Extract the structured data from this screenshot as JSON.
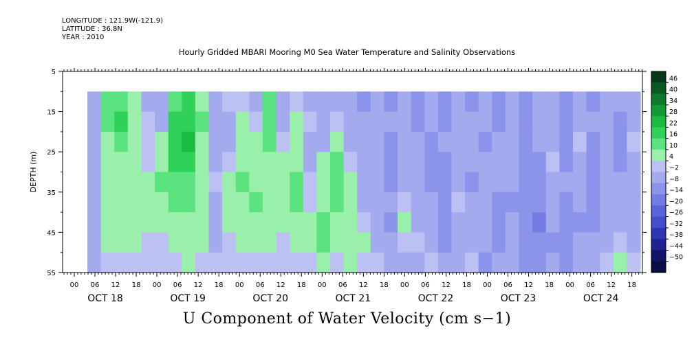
{
  "header": {
    "longitude": "LONGITUDE : 121.9W(-121.9)",
    "latitude": "LATITUDE : 36.8N",
    "year": "YEAR : 2010"
  },
  "chart_data": {
    "type": "heatmap",
    "title": "Hourly Gridded MBARI Mooring M0 Sea Water Temperature and Salinity Observations",
    "xlabel": "U Component of Water Velocity (cm s−1)",
    "ylabel": "DEPTH (m)",
    "y_range": [
      5,
      55
    ],
    "y_ticks": [
      5,
      15,
      25,
      35,
      45,
      55
    ],
    "y_data_range": [
      10,
      55
    ],
    "x_hour_ticks": [
      "00",
      "06",
      "12",
      "18",
      "00",
      "06",
      "12",
      "18",
      "00",
      "06",
      "12",
      "18",
      "00",
      "06",
      "12",
      "18",
      "00",
      "06",
      "12",
      "18",
      "00",
      "06",
      "12",
      "18",
      "00",
      "06",
      "12",
      "18"
    ],
    "x_day_labels": [
      "OCT 18",
      "OCT 19",
      "OCT 20",
      "OCT 21",
      "OCT 22",
      "OCT 23",
      "OCT 24"
    ],
    "colorbar": {
      "labels": [
        "46",
        "40",
        "34",
        "28",
        "22",
        "16",
        "10",
        "4",
        "−2",
        "−8",
        "−14",
        "−20",
        "−26",
        "−32",
        "−38",
        "−44",
        "−50"
      ],
      "colors": [
        "#063a1a",
        "#0a5a22",
        "#0f7a2b",
        "#149a35",
        "#1bbb42",
        "#2fd158",
        "#5ae37e",
        "#9af0ab",
        "#bcc0f2",
        "#a4aaee",
        "#8c93ea",
        "#747ce4",
        "#5c64dd",
        "#444ccf",
        "#3035b3",
        "#1f2390",
        "#101566",
        "#0a0c44"
      ]
    },
    "columns": [
      {
        "t": 0,
        "v": [
          -4,
          -6,
          -8,
          -6,
          -4,
          -6,
          -8,
          -6,
          -4
        ]
      },
      {
        "t": 1,
        "v": [
          10,
          12,
          8,
          6,
          4,
          6,
          8,
          4,
          2
        ]
      },
      {
        "t": 2,
        "v": [
          14,
          16,
          10,
          8,
          6,
          4,
          6,
          4,
          2
        ]
      },
      {
        "t": 3,
        "v": [
          6,
          8,
          6,
          4,
          6,
          8,
          6,
          4,
          2
        ]
      },
      {
        "t": 4,
        "v": [
          -4,
          -2,
          0,
          2,
          4,
          6,
          4,
          2,
          0
        ]
      },
      {
        "t": 5,
        "v": [
          -6,
          -4,
          4,
          8,
          10,
          8,
          4,
          2,
          0
        ]
      },
      {
        "t": 6,
        "v": [
          12,
          16,
          20,
          18,
          14,
          10,
          6,
          4,
          2
        ]
      },
      {
        "t": 7,
        "v": [
          16,
          20,
          22,
          18,
          14,
          10,
          8,
          6,
          4
        ]
      },
      {
        "t": 8,
        "v": [
          8,
          10,
          6,
          4,
          6,
          8,
          6,
          4,
          2
        ]
      },
      {
        "t": 9,
        "v": [
          -4,
          -6,
          -8,
          -4,
          -2,
          -4,
          -6,
          -4,
          -2
        ]
      },
      {
        "t": 10,
        "v": [
          -2,
          -4,
          -6,
          2,
          4,
          6,
          4,
          2,
          0
        ]
      },
      {
        "t": 11,
        "v": [
          2,
          4,
          6,
          8,
          10,
          8,
          6,
          4,
          2
        ]
      },
      {
        "t": 12,
        "v": [
          -4,
          -2,
          4,
          6,
          8,
          10,
          8,
          4,
          2
        ]
      },
      {
        "t": 13,
        "v": [
          10,
          12,
          10,
          8,
          6,
          4,
          6,
          4,
          2
        ]
      },
      {
        "t": 14,
        "v": [
          -6,
          -4,
          -2,
          4,
          8,
          6,
          4,
          2,
          0
        ]
      },
      {
        "t": 15,
        "v": [
          -2,
          4,
          6,
          8,
          10,
          12,
          8,
          4,
          2
        ]
      },
      {
        "t": 16,
        "v": [
          -4,
          -2,
          -6,
          -4,
          -2,
          2,
          4,
          6,
          2
        ]
      },
      {
        "t": 17,
        "v": [
          -8,
          -6,
          -4,
          4,
          6,
          8,
          10,
          12,
          6
        ]
      },
      {
        "t": 18,
        "v": [
          -4,
          -2,
          6,
          10,
          12,
          10,
          6,
          4,
          2
        ]
      },
      {
        "t": 19,
        "v": [
          -8,
          -6,
          -4,
          -2,
          4,
          6,
          8,
          6,
          4
        ]
      },
      {
        "t": 20,
        "v": [
          -10,
          -8,
          -6,
          -8,
          -6,
          -4,
          -2,
          4,
          2
        ]
      },
      {
        "t": 21,
        "v": [
          -6,
          -4,
          -6,
          -8,
          -6,
          -4,
          -6,
          -4,
          -2
        ]
      },
      {
        "t": 22,
        "v": [
          -10,
          -8,
          -10,
          -12,
          -10,
          -8,
          -10,
          -8,
          -6
        ]
      },
      {
        "t": 23,
        "v": [
          -4,
          -6,
          -8,
          -6,
          -4,
          2,
          4,
          -2,
          -4
        ]
      },
      {
        "t": 24,
        "v": [
          -12,
          -10,
          -8,
          -6,
          -4,
          -6,
          -4,
          -2,
          -6
        ]
      },
      {
        "t": 25,
        "v": [
          -8,
          -6,
          -10,
          -12,
          -10,
          -8,
          -6,
          -4,
          -2
        ]
      },
      {
        "t": 26,
        "v": [
          -12,
          -10,
          -8,
          -10,
          -12,
          -14,
          -12,
          -10,
          -8
        ]
      },
      {
        "t": 27,
        "v": [
          -6,
          -4,
          -8,
          -6,
          -4,
          -2,
          -4,
          -6,
          -8
        ]
      },
      {
        "t": 28,
        "v": [
          -10,
          -8,
          -6,
          -8,
          -10,
          -8,
          -6,
          -4,
          -2
        ]
      },
      {
        "t": 29,
        "v": [
          -6,
          -8,
          -10,
          -8,
          -6,
          -4,
          -6,
          -8,
          -10
        ]
      },
      {
        "t": 30,
        "v": [
          -12,
          -10,
          -8,
          -6,
          -8,
          -10,
          -12,
          -10,
          -8
        ]
      },
      {
        "t": 31,
        "v": [
          -8,
          -6,
          -4,
          -6,
          -8,
          -10,
          -8,
          -6,
          -4
        ]
      },
      {
        "t": 32,
        "v": [
          -10,
          -12,
          -14,
          -12,
          -10,
          -12,
          -14,
          -12,
          -10
        ]
      },
      {
        "t": 33,
        "v": [
          -4,
          -6,
          -8,
          -10,
          -12,
          -14,
          -16,
          -14,
          -12
        ]
      },
      {
        "t": 34,
        "v": [
          -8,
          -6,
          -4,
          -2,
          -4,
          -6,
          -8,
          -10,
          -8
        ]
      },
      {
        "t": 35,
        "v": [
          -12,
          -14,
          -12,
          -10,
          -8,
          -10,
          -12,
          -14,
          -12
        ]
      },
      {
        "t": 36,
        "v": [
          -6,
          -4,
          -2,
          -4,
          -6,
          -8,
          -10,
          -8,
          -6
        ]
      },
      {
        "t": 37,
        "v": [
          -10,
          -8,
          -10,
          -12,
          -14,
          -12,
          -10,
          -8,
          -6
        ]
      },
      {
        "t": 38,
        "v": [
          -4,
          -6,
          -8,
          -6,
          -4,
          -6,
          -8,
          -4,
          2
        ]
      },
      {
        "t": 39,
        "v": [
          -8,
          -10,
          -12,
          -10,
          -8,
          -6,
          -4,
          -2,
          4
        ]
      },
      {
        "t": 40,
        "v": [
          -6,
          -4,
          -2,
          -4,
          -6,
          -8,
          -6,
          -4,
          -2
        ]
      }
    ]
  }
}
